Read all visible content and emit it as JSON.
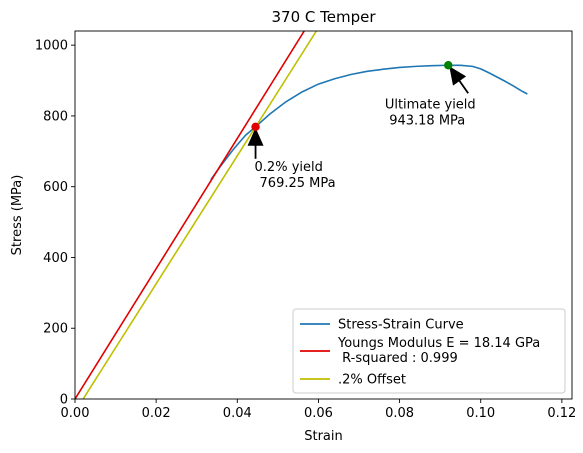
{
  "chart_data": {
    "type": "line",
    "title": "370 C Temper",
    "xlabel": "Strain",
    "ylabel": "Stress (MPa)",
    "xlim": [
      0,
      0.1225
    ],
    "ylim": [
      0,
      1040
    ],
    "xticks": [
      0.0,
      0.02,
      0.04,
      0.06,
      0.08,
      0.1,
      0.12
    ],
    "xtick_labels": [
      "0.00",
      "0.02",
      "0.04",
      "0.06",
      "0.08",
      "0.10",
      "0.12"
    ],
    "yticks": [
      0,
      200,
      400,
      600,
      800,
      1000
    ],
    "ytick_labels": [
      "0",
      "200",
      "400",
      "600",
      "800",
      "1000"
    ],
    "grid": false,
    "legend_position": "lower-right",
    "series": [
      {
        "name": "Stress-Strain Curve",
        "color": "#1f77b4",
        "x": [
          0.0335,
          0.036,
          0.039,
          0.042,
          0.0445,
          0.048,
          0.052,
          0.056,
          0.06,
          0.064,
          0.068,
          0.072,
          0.076,
          0.08,
          0.084,
          0.088,
          0.092,
          0.095,
          0.098,
          0.1,
          0.102,
          0.104,
          0.106,
          0.108,
          0.11,
          0.1115
        ],
        "y": [
          620,
          660,
          705,
          745,
          769.25,
          805,
          840,
          868,
          890,
          905,
          917,
          926,
          932,
          937,
          940,
          942,
          943.18,
          943,
          940,
          933,
          922,
          910,
          898,
          885,
          871,
          862
        ]
      },
      {
        "name": "Youngs Modulus E = 18.14 GPa",
        "name_line2": " R-squared : 0.999",
        "color": "#e00000",
        "x": [
          0,
          0.0565
        ],
        "y": [
          0,
          1040
        ]
      },
      {
        "name": ".2% Offset",
        "color": "#bfbf00",
        "x": [
          0.002,
          0.0595
        ],
        "y": [
          0,
          1040
        ]
      }
    ],
    "points": [
      {
        "label": "0.2% yield",
        "value_text": "769.25 MPa",
        "x": 0.0445,
        "y": 769.25,
        "color": "#e00000"
      },
      {
        "label": "Ultimate yield",
        "value_text": "943.18 MPa",
        "x": 0.092,
        "y": 943.18,
        "color": "#008000"
      }
    ]
  }
}
